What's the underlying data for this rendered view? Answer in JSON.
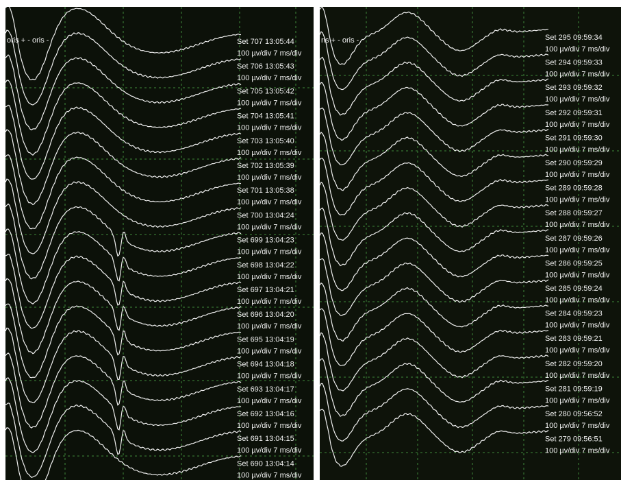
{
  "panels": [
    {
      "channel": "oris + - oris -",
      "traces": [
        {
          "set": "Set 707 13:05:44",
          "scale": "100 µv/div 7 ms/div"
        },
        {
          "set": "Set 706 13:05:43",
          "scale": "100 µv/div 7 ms/div"
        },
        {
          "set": "Set 705 13:05:42",
          "scale": "100 µv/div 7 ms/div"
        },
        {
          "set": "Set 704 13:05:41",
          "scale": "100 µv/div 7 ms/div"
        },
        {
          "set": "Set 703 13:05:40",
          "scale": "100 µv/div 7 ms/div"
        },
        {
          "set": "Set 702 13:05:39",
          "scale": "100 µv/div 7 ms/div"
        },
        {
          "set": "Set 701 13:05:38",
          "scale": "100 µv/div 7 ms/div"
        },
        {
          "set": "Set 700 13:04:24",
          "scale": "100 µv/div 7 ms/div"
        },
        {
          "set": "Set 699 13:04:23",
          "scale": "100 µv/div 7 ms/div"
        },
        {
          "set": "Set 698 13:04:22",
          "scale": "100 µv/div 7 ms/div"
        },
        {
          "set": "Set 697 13:04:21",
          "scale": "100 µv/div 7 ms/div"
        },
        {
          "set": "Set 696 13:04:20",
          "scale": "100 µv/div 7 ms/div"
        },
        {
          "set": "Set 695 13:04:19",
          "scale": "100 µv/div 7 ms/div"
        },
        {
          "set": "Set 694 13:04:18",
          "scale": "100 µv/div 7 ms/div"
        },
        {
          "set": "Set 693 13:04:17",
          "scale": "100 µv/div 7 ms/div"
        },
        {
          "set": "Set 692 13:04:16",
          "scale": "100 µv/div 7 ms/div"
        },
        {
          "set": "Set 691 13:04:15",
          "scale": "100 µv/div 7 ms/div"
        },
        {
          "set": "Set 690 13:04:14",
          "scale": "100 µv/div 7 ms/div"
        }
      ]
    },
    {
      "channel": "ris + - oris -",
      "traces": [
        {
          "set": "Set 295 09:59:34",
          "scale": "100 µv/div 7 ms/div"
        },
        {
          "set": "Set 294 09:59:33",
          "scale": "100 µv/div 7 ms/div"
        },
        {
          "set": "Set 293 09:59:32",
          "scale": "100 µv/div 7 ms/div"
        },
        {
          "set": "Set 292 09:59:31",
          "scale": "100 µv/div 7 ms/div"
        },
        {
          "set": "Set 291 09:59:30",
          "scale": "100 µv/div 7 ms/div"
        },
        {
          "set": "Set 290 09:59:29",
          "scale": "100 µv/div 7 ms/div"
        },
        {
          "set": "Set 289 09:59:28",
          "scale": "100 µv/div 7 ms/div"
        },
        {
          "set": "Set 288 09:59:27",
          "scale": "100 µv/div 7 ms/div"
        },
        {
          "set": "Set 287 09:59:26",
          "scale": "100 µv/div 7 ms/div"
        },
        {
          "set": "Set 286 09:59:25",
          "scale": "100 µv/div 7 ms/div"
        },
        {
          "set": "Set 285 09:59:24",
          "scale": "100 µv/div 7 ms/div"
        },
        {
          "set": "Set 284 09:59:23",
          "scale": "100 µv/div 7 ms/div"
        },
        {
          "set": "Set 283 09:59:21",
          "scale": "100 µv/div 7 ms/div"
        },
        {
          "set": "Set 282 09:59:20",
          "scale": "100 µv/div 7 ms/div"
        },
        {
          "set": "Set 281 09:59:19",
          "scale": "100 µv/div 7 ms/div"
        },
        {
          "set": "Set 280 09:56:52",
          "scale": "100 µv/div 7 ms/div"
        },
        {
          "set": "Set 279 09:56:51",
          "scale": "100 µv/div 7 ms/div"
        }
      ]
    }
  ]
}
